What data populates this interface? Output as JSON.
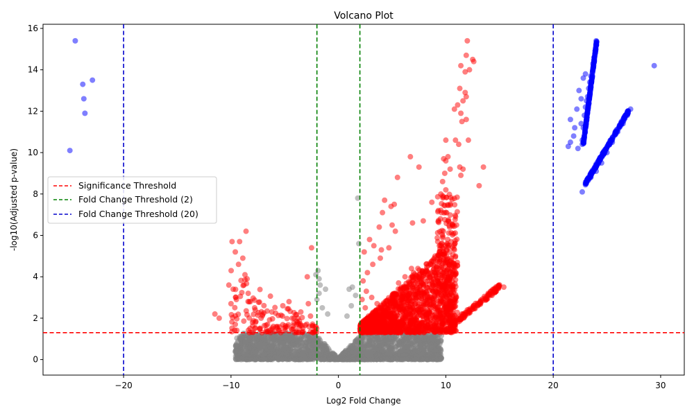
{
  "chart_data": {
    "type": "scatter",
    "title": "Volcano Plot",
    "xlabel": "Log2 Fold Change",
    "ylabel": "-log10(Adjusted p-value)",
    "xlim": [
      -27.5,
      32.2
    ],
    "ylim": [
      -0.75,
      16.2
    ],
    "xticks": [
      -20,
      -10,
      0,
      10,
      20,
      30
    ],
    "yticks": [
      0,
      2,
      4,
      6,
      8,
      10,
      12,
      14,
      16
    ],
    "xtick_labels": [
      "−20",
      "−10",
      "0",
      "10",
      "20",
      "30"
    ],
    "ytick_labels": [
      "0",
      "2",
      "4",
      "6",
      "8",
      "10",
      "12",
      "14",
      "16"
    ],
    "grid": false,
    "legend_position": "center-left",
    "colors": {
      "not_significant": "#808080",
      "significant": "#ff0000",
      "high_fold_change": "#0000ff",
      "significance_line": "#ff0000",
      "fold2_line": "#008000",
      "fold20_line": "#0000cc"
    },
    "thresholds": [
      {
        "name": "Significance Threshold",
        "orientation": "horizontal",
        "values": [
          1.3
        ],
        "color": "#ff0000"
      },
      {
        "name": "Fold Change Threshold (2)",
        "orientation": "vertical",
        "values": [
          -2,
          2
        ],
        "color": "#008000"
      },
      {
        "name": "Fold Change Threshold (20)",
        "orientation": "vertical",
        "values": [
          -20,
          20
        ],
        "color": "#0000cc"
      }
    ],
    "series": [
      {
        "category": "significant",
        "color": "#ff0000",
        "points": [
          [
            12.0,
            15.4
          ],
          [
            11.9,
            14.7
          ],
          [
            12.5,
            14.5
          ],
          [
            12.6,
            14.4
          ],
          [
            11.4,
            14.2
          ],
          [
            12.2,
            14.0
          ],
          [
            11.8,
            13.9
          ],
          [
            11.3,
            13.1
          ],
          [
            11.8,
            12.9
          ],
          [
            11.9,
            12.7
          ],
          [
            11.6,
            12.5
          ],
          [
            11.1,
            12.3
          ],
          [
            10.8,
            12.1
          ],
          [
            11.4,
            11.9
          ],
          [
            11.9,
            11.6
          ],
          [
            11.5,
            11.5
          ],
          [
            10.9,
            10.6
          ],
          [
            10.0,
            10.6
          ],
          [
            12.1,
            10.6
          ],
          [
            11.2,
            10.4
          ],
          [
            10.2,
            9.8
          ],
          [
            10.0,
            9.6
          ],
          [
            9.8,
            9.7
          ],
          [
            10.4,
            9.2
          ],
          [
            11.3,
            9.3
          ],
          [
            11.6,
            9.2
          ],
          [
            11.4,
            8.9
          ],
          [
            13.5,
            9.3
          ],
          [
            13.1,
            8.4
          ],
          [
            9.9,
            9.0
          ],
          [
            9.7,
            8.6
          ],
          [
            10.0,
            8.2
          ],
          [
            6.7,
            9.8
          ],
          [
            7.5,
            9.3
          ],
          [
            5.5,
            8.8
          ],
          [
            4.3,
            7.7
          ],
          [
            5.2,
            7.5
          ],
          [
            4.9,
            7.4
          ],
          [
            4.1,
            7.1
          ],
          [
            9.3,
            7.2
          ],
          [
            9.6,
            7.1
          ],
          [
            8.7,
            7.6
          ],
          [
            9.5,
            6.8
          ],
          [
            10.2,
            6.7
          ],
          [
            10.6,
            6.5
          ],
          [
            11.0,
            6.5
          ],
          [
            6.9,
            6.6
          ],
          [
            7.9,
            6.7
          ],
          [
            3.8,
            6.4
          ],
          [
            5.0,
            6.5
          ],
          [
            5.3,
            6.2
          ],
          [
            2.9,
            5.8
          ],
          [
            3.3,
            5.5
          ],
          [
            4.0,
            5.3
          ],
          [
            4.7,
            5.4
          ],
          [
            2.4,
            5.2
          ],
          [
            -8.6,
            6.2
          ],
          [
            -9.9,
            5.7
          ],
          [
            -9.2,
            5.7
          ],
          [
            -9.6,
            5.2
          ],
          [
            -8.9,
            4.9
          ],
          [
            -9.3,
            4.6
          ],
          [
            -8.7,
            4.1
          ],
          [
            -8.5,
            3.9
          ],
          [
            -10.2,
            3.6
          ],
          [
            -9.8,
            3.4
          ],
          [
            -8.8,
            3.6
          ],
          [
            -8.4,
            3.2
          ],
          [
            -9.5,
            2.9
          ],
          [
            -10.0,
            2.7
          ],
          [
            -8.2,
            2.8
          ],
          [
            -7.8,
            2.5
          ],
          [
            -11.5,
            2.2
          ],
          [
            -11.1,
            2.0
          ],
          [
            -6.2,
            2.3
          ],
          [
            -5.2,
            2.1
          ],
          [
            -4.6,
            2.8
          ],
          [
            -2.5,
            5.4
          ],
          [
            -2.9,
            4.0
          ],
          [
            -2.8,
            2.7
          ],
          [
            -3.5,
            2.3
          ],
          [
            -2.6,
            2.1
          ],
          [
            -9.6,
            1.7
          ],
          [
            -8.0,
            1.8
          ],
          [
            -7.2,
            2.0
          ],
          [
            -3.9,
            1.7
          ],
          [
            -5.7,
            1.6
          ],
          [
            15.4,
            3.5
          ],
          [
            14.7,
            3.3
          ],
          [
            14.3,
            3.1
          ],
          [
            13.8,
            3.0
          ],
          [
            13.2,
            2.8
          ],
          [
            12.6,
            2.6
          ],
          [
            12.0,
            2.4
          ],
          [
            11.5,
            2.2
          ],
          [
            11.0,
            2.0
          ],
          [
            10.6,
            1.8
          ],
          [
            10.2,
            1.6
          ],
          [
            6.8,
            4.4
          ],
          [
            7.4,
            4.4
          ],
          [
            7.0,
            4.2
          ],
          [
            6.2,
            4.0
          ],
          [
            5.6,
            3.7
          ],
          [
            3.9,
            4.9
          ],
          [
            3.2,
            4.6
          ],
          [
            2.7,
            4.2
          ],
          [
            2.3,
            3.8
          ],
          [
            2.6,
            3.3
          ],
          [
            3.1,
            3.0
          ],
          [
            3.6,
            2.7
          ],
          [
            4.2,
            2.4
          ],
          [
            4.8,
            2.1
          ],
          [
            5.4,
            1.9
          ],
          [
            6.1,
            1.7
          ],
          [
            2.2,
            2.9
          ],
          [
            2.5,
            2.5
          ],
          [
            2.8,
            2.1
          ],
          [
            9.0,
            5.0
          ],
          [
            9.4,
            5.5
          ],
          [
            10.1,
            5.6
          ],
          [
            10.5,
            4.8
          ],
          [
            9.8,
            4.2
          ],
          [
            9.2,
            3.8
          ],
          [
            8.8,
            3.3
          ],
          [
            8.3,
            3.0
          ],
          [
            7.9,
            2.6
          ],
          [
            7.5,
            2.3
          ],
          [
            8.6,
            4.6
          ],
          [
            9.1,
            4.0
          ],
          [
            8.1,
            2.9
          ],
          [
            10.8,
            5.3
          ],
          [
            10.9,
            5.0
          ],
          [
            10.7,
            4.5
          ],
          [
            10.3,
            4.0
          ],
          [
            9.9,
            3.6
          ]
        ]
      },
      {
        "category": "high_fold_change",
        "color": "#0000ff",
        "points": [
          [
            -24.5,
            15.4
          ],
          [
            -23.8,
            13.3
          ],
          [
            -22.9,
            13.5
          ],
          [
            -23.7,
            12.6
          ],
          [
            -23.6,
            11.9
          ],
          [
            -25.0,
            10.1
          ],
          [
            29.4,
            14.2
          ],
          [
            27.2,
            12.1
          ],
          [
            26.9,
            11.8
          ],
          [
            26.5,
            11.4
          ],
          [
            26.0,
            11.0
          ],
          [
            25.5,
            10.5
          ],
          [
            25.0,
            10.0
          ],
          [
            24.5,
            9.5
          ],
          [
            24.0,
            9.1
          ],
          [
            23.5,
            8.8
          ],
          [
            23.0,
            8.5
          ],
          [
            22.7,
            8.1
          ],
          [
            21.4,
            10.3
          ],
          [
            21.6,
            10.5
          ],
          [
            21.9,
            10.8
          ],
          [
            22.3,
            10.2
          ],
          [
            22.7,
            10.4
          ],
          [
            21.6,
            11.6
          ],
          [
            22.0,
            11.2
          ],
          [
            22.2,
            12.1
          ],
          [
            22.6,
            12.6
          ],
          [
            22.4,
            13.0
          ],
          [
            23.0,
            13.8
          ],
          [
            22.8,
            13.6
          ],
          [
            23.2,
            12.7
          ],
          [
            24.0,
            15.4
          ],
          [
            24.0,
            15.2
          ],
          [
            23.9,
            14.9
          ],
          [
            23.7,
            14.3
          ],
          [
            23.5,
            13.7
          ],
          [
            23.3,
            13.1
          ],
          [
            23.1,
            12.5
          ],
          [
            22.9,
            11.8
          ],
          [
            22.8,
            11.2
          ],
          [
            22.7,
            10.6
          ],
          [
            23.8,
            14.6
          ],
          [
            23.4,
            13.4
          ],
          [
            23.0,
            12.2
          ],
          [
            22.6,
            11.4
          ]
        ]
      }
    ],
    "dense_regions": [
      {
        "category": "not_significant",
        "color": "#808080",
        "x_range": [
          -9.5,
          9.5
        ],
        "y_range": [
          -0.1,
          1.3
        ],
        "note": "v-shaped cloud"
      },
      {
        "category": "significant",
        "color": "#ff0000",
        "x_range": [
          2,
          11
        ],
        "y_range": [
          1.3,
          5.6
        ]
      }
    ],
    "legend": [
      {
        "label": "Significance Threshold",
        "color": "#ff0000"
      },
      {
        "label": "Fold Change Threshold (2)",
        "color": "#008000"
      },
      {
        "label": "Fold Change Threshold (20)",
        "color": "#0000cc"
      }
    ]
  }
}
